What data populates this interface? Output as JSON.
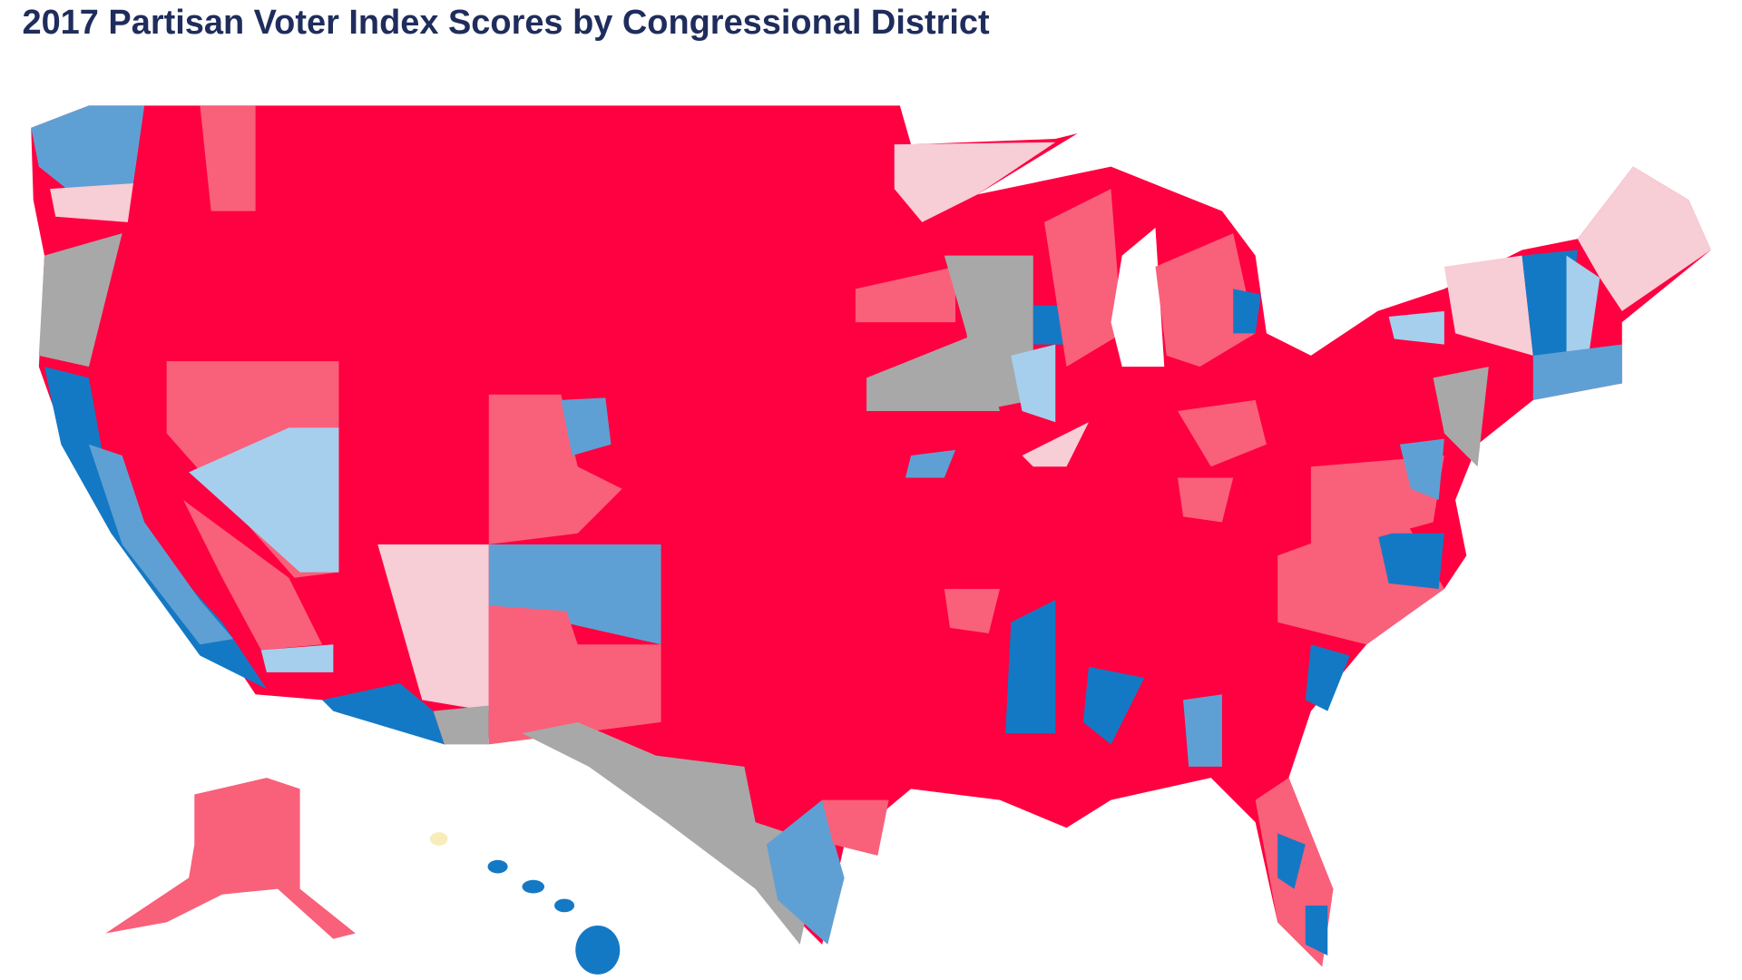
{
  "title": "2017 Partisan Voter Index Scores by Congressional District"
}
